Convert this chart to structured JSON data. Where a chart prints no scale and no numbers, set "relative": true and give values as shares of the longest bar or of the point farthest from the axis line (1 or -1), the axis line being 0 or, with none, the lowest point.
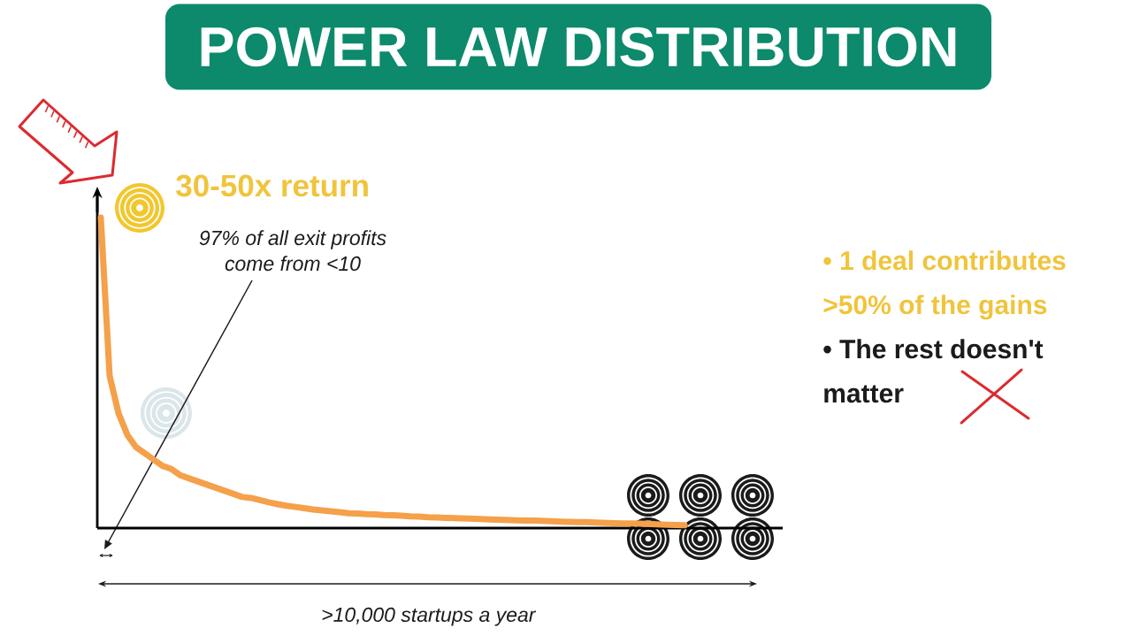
{
  "chart_data": {
    "type": "line",
    "title": "POWER LAW DISTRIBUTION",
    "xlabel": ">10,000 startups a year",
    "annotations": [
      "30-50x return",
      "97% of all exit profits come from <10",
      "• 1 deal contributes >50% of the gains",
      "• The rest doesn't matter"
    ],
    "categories": [
      null,
      null,
      null,
      null,
      null,
      null,
      null,
      null,
      null,
      null,
      null,
      null,
      null,
      null,
      null,
      null,
      null,
      null,
      null,
      null,
      null,
      null,
      null,
      null,
      null,
      null,
      null,
      null,
      null,
      null,
      null,
      null,
      null,
      null,
      null,
      null,
      null,
      null,
      null,
      null,
      null,
      null,
      null,
      null,
      null,
      null,
      null,
      null,
      null,
      null,
      null,
      null,
      null,
      null,
      null,
      null,
      null,
      null,
      null,
      null,
      null,
      null,
      null,
      null,
      null,
      null,
      null
    ],
    "values": [
      1.0,
      0.49,
      0.37,
      0.3,
      0.26,
      0.24,
      0.22,
      0.2,
      0.19,
      0.17,
      0.16,
      0.15,
      0.14,
      0.13,
      0.12,
      0.11,
      0.1,
      0.097,
      0.09,
      0.083,
      0.077,
      0.072,
      0.068,
      0.064,
      0.06,
      0.057,
      0.054,
      0.051,
      0.048,
      0.047,
      0.045,
      0.044,
      0.042,
      0.041,
      0.04,
      0.038,
      0.037,
      0.035,
      0.034,
      0.033,
      0.032,
      0.031,
      0.03,
      0.029,
      0.028,
      0.027,
      0.026,
      0.025,
      0.024,
      0.024,
      0.023,
      0.022,
      0.021,
      0.02,
      0.019,
      0.019,
      0.018,
      0.017,
      0.016,
      0.015,
      0.015,
      0.014,
      0.013,
      0.012,
      0.011,
      0.01,
      0.009
    ],
    "color": "#f5a04a",
    "relative": true
  }
}
